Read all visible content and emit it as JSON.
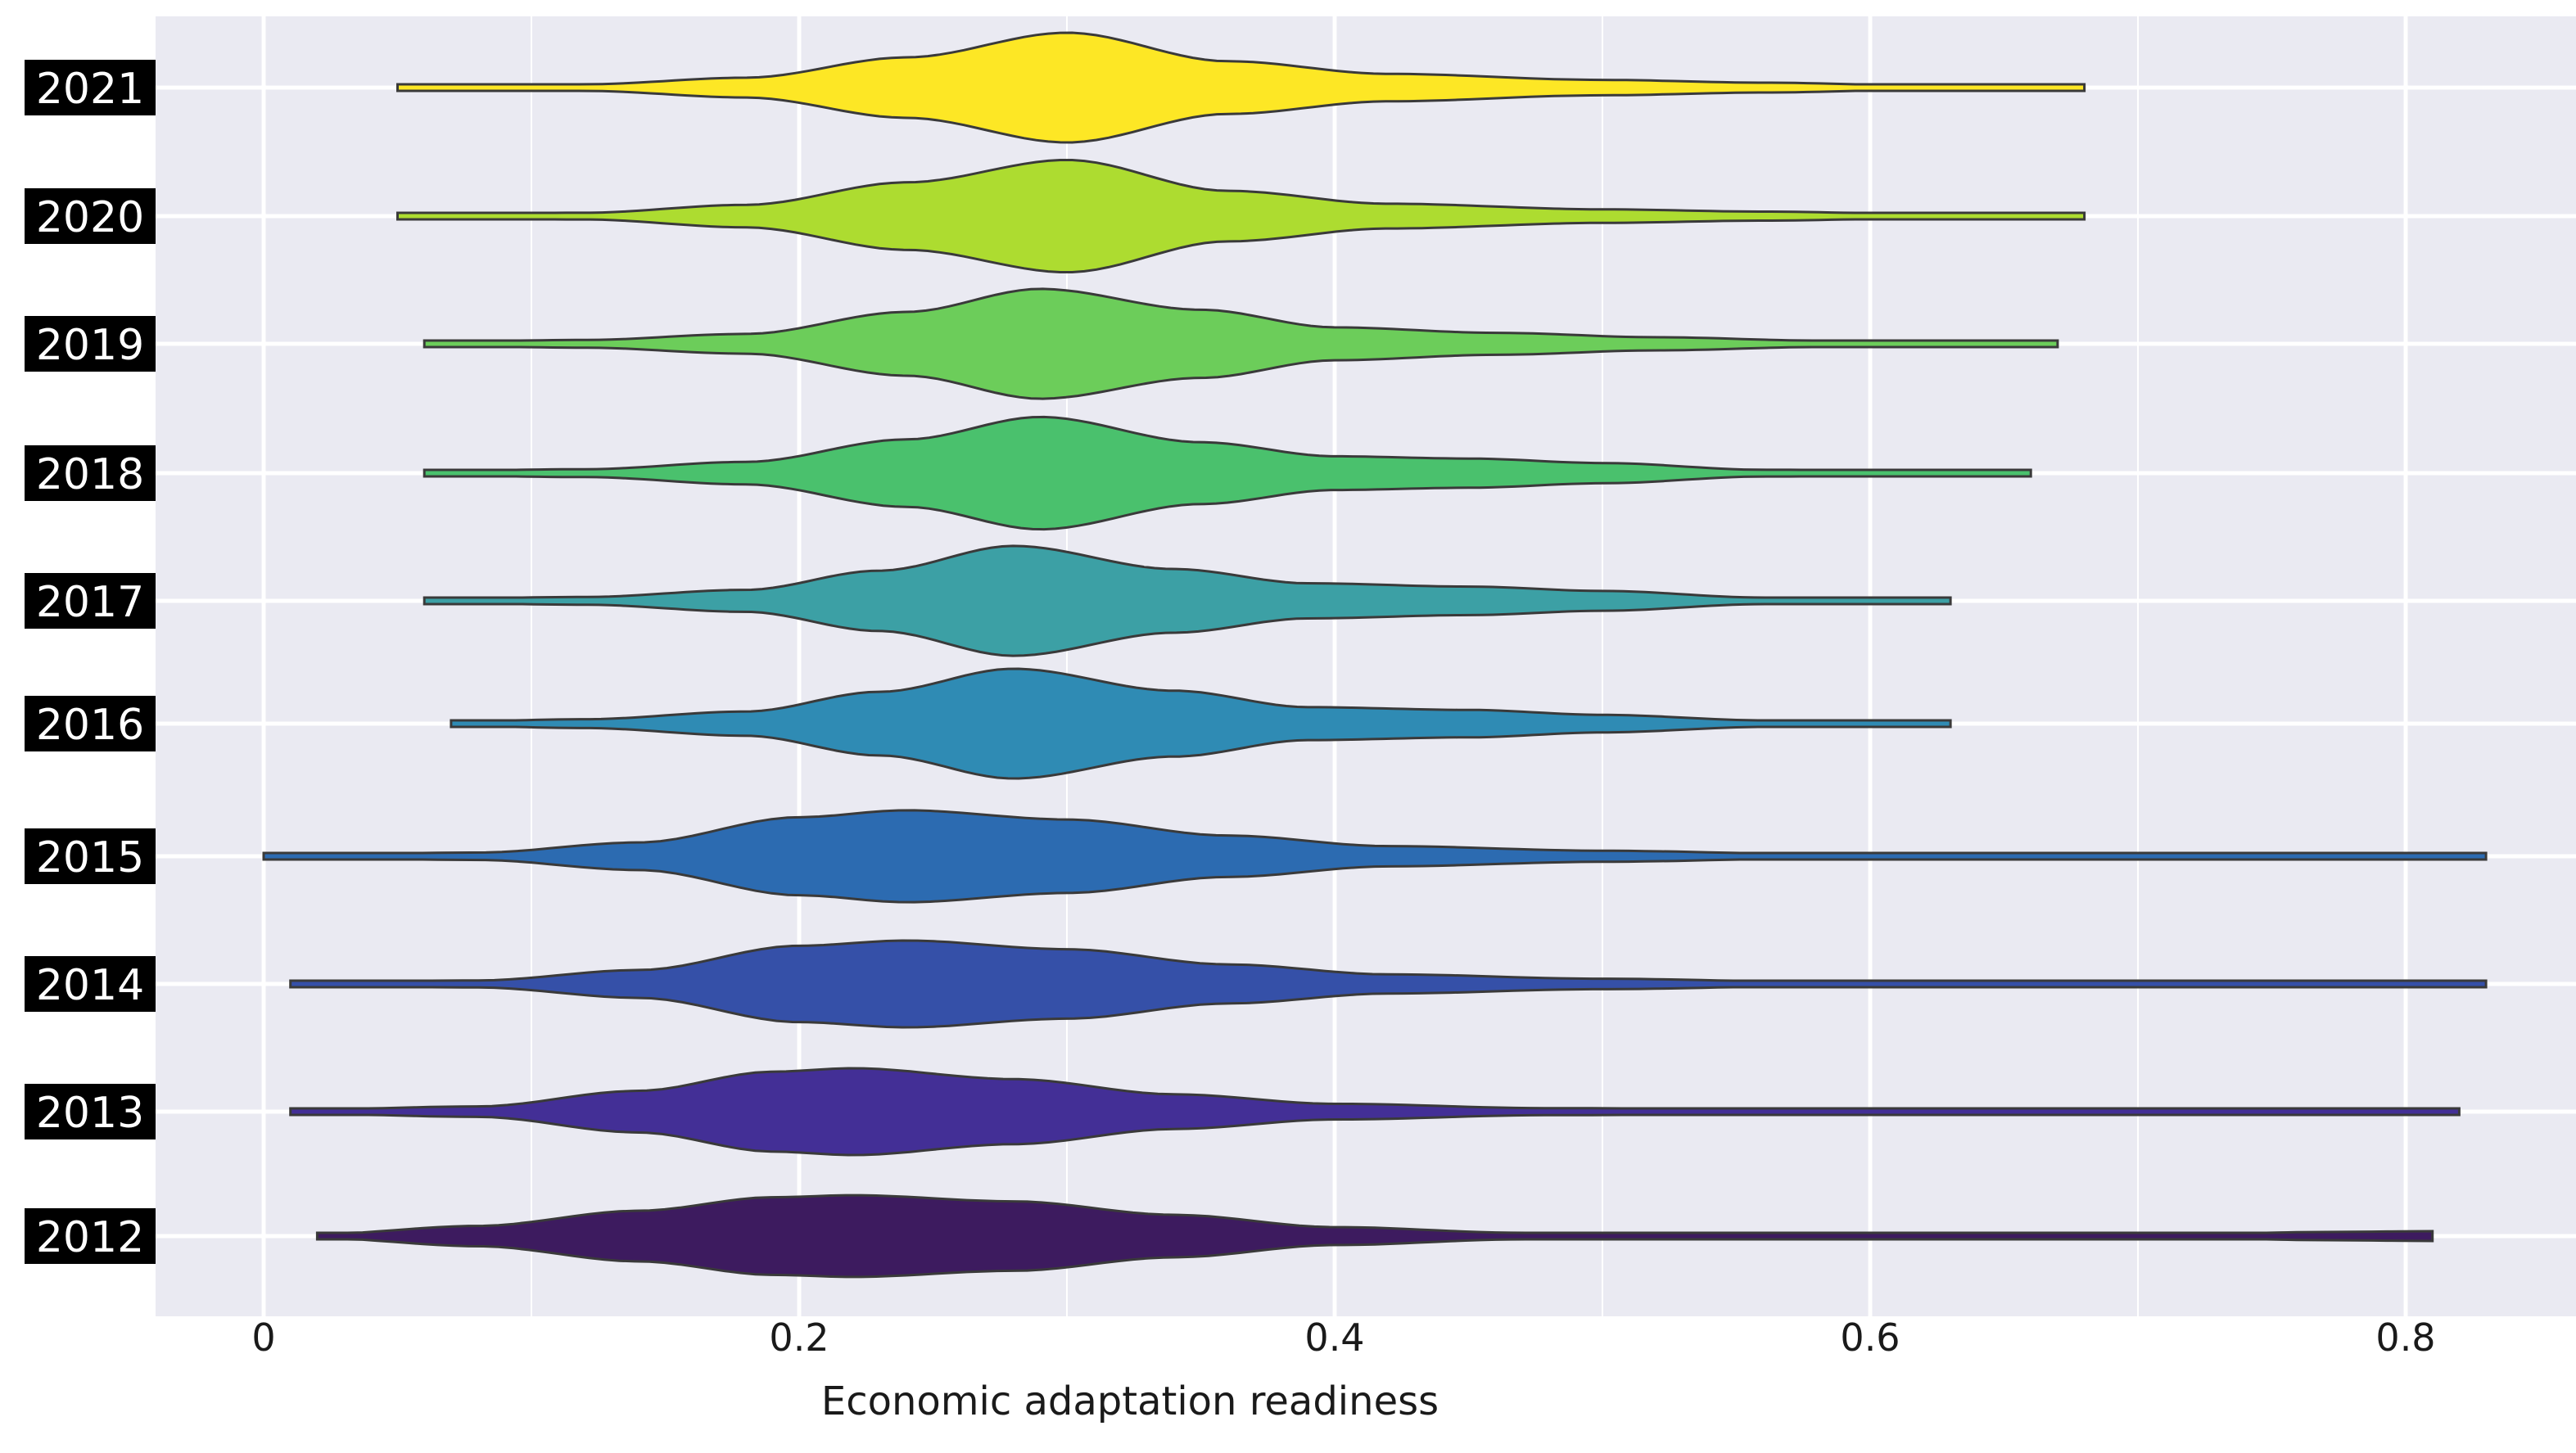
{
  "chart_data": {
    "type": "violin",
    "orientation": "horizontal",
    "title": "",
    "xlabel": "Economic adaptation readiness",
    "ylabel": "",
    "xlim": [
      -0.01,
      0.86
    ],
    "x_ticks": [
      {
        "value": 0,
        "label": "0"
      },
      {
        "value": 0.2,
        "label": "0.2"
      },
      {
        "value": 0.4,
        "label": "0.4"
      },
      {
        "value": 0.6,
        "label": "0.6"
      },
      {
        "value": 0.8,
        "label": "0.8"
      }
    ],
    "x_minor_ticks": [
      0.1,
      0.3,
      0.5,
      0.7
    ],
    "grid": true,
    "background_color": "#eaeaf2",
    "grid_color": "#ffffff",
    "outline_color": "#3a3a3a",
    "series": [
      {
        "label": "2021",
        "color": "#fde725",
        "min": 0.05,
        "max": 0.68,
        "half_width": 0.43,
        "profile": [
          [
            0.05,
            0.03
          ],
          [
            0.12,
            0.06
          ],
          [
            0.18,
            0.18
          ],
          [
            0.24,
            0.55
          ],
          [
            0.3,
            1.0
          ],
          [
            0.36,
            0.48
          ],
          [
            0.42,
            0.25
          ],
          [
            0.5,
            0.14
          ],
          [
            0.56,
            0.09
          ],
          [
            0.62,
            0.04
          ],
          [
            0.68,
            0.03
          ]
        ]
      },
      {
        "label": "2020",
        "color": "#addc30",
        "min": 0.05,
        "max": 0.68,
        "half_width": 0.44,
        "profile": [
          [
            0.05,
            0.03
          ],
          [
            0.12,
            0.06
          ],
          [
            0.18,
            0.2
          ],
          [
            0.24,
            0.6
          ],
          [
            0.3,
            1.0
          ],
          [
            0.36,
            0.45
          ],
          [
            0.42,
            0.22
          ],
          [
            0.5,
            0.12
          ],
          [
            0.56,
            0.08
          ],
          [
            0.62,
            0.04
          ],
          [
            0.68,
            0.03
          ]
        ]
      },
      {
        "label": "2019",
        "color": "#6ccd5a",
        "min": 0.06,
        "max": 0.67,
        "half_width": 0.43,
        "profile": [
          [
            0.06,
            0.04
          ],
          [
            0.12,
            0.07
          ],
          [
            0.18,
            0.18
          ],
          [
            0.24,
            0.58
          ],
          [
            0.29,
            1.0
          ],
          [
            0.35,
            0.62
          ],
          [
            0.4,
            0.3
          ],
          [
            0.46,
            0.2
          ],
          [
            0.52,
            0.12
          ],
          [
            0.58,
            0.06
          ],
          [
            0.67,
            0.04
          ]
        ]
      },
      {
        "label": "2018",
        "color": "#4ac16d",
        "min": 0.06,
        "max": 0.66,
        "half_width": 0.44,
        "profile": [
          [
            0.06,
            0.04
          ],
          [
            0.12,
            0.07
          ],
          [
            0.18,
            0.2
          ],
          [
            0.24,
            0.6
          ],
          [
            0.29,
            1.0
          ],
          [
            0.35,
            0.55
          ],
          [
            0.4,
            0.3
          ],
          [
            0.45,
            0.26
          ],
          [
            0.5,
            0.18
          ],
          [
            0.56,
            0.06
          ],
          [
            0.66,
            0.04
          ]
        ]
      },
      {
        "label": "2017",
        "color": "#3ca0a5",
        "min": 0.06,
        "max": 0.63,
        "half_width": 0.43,
        "profile": [
          [
            0.06,
            0.04
          ],
          [
            0.12,
            0.07
          ],
          [
            0.18,
            0.2
          ],
          [
            0.23,
            0.55
          ],
          [
            0.28,
            1.0
          ],
          [
            0.34,
            0.58
          ],
          [
            0.39,
            0.32
          ],
          [
            0.45,
            0.26
          ],
          [
            0.5,
            0.18
          ],
          [
            0.56,
            0.06
          ],
          [
            0.63,
            0.04
          ]
        ]
      },
      {
        "label": "2016",
        "color": "#2f8bb4",
        "min": 0.07,
        "max": 0.63,
        "half_width": 0.43,
        "profile": [
          [
            0.07,
            0.04
          ],
          [
            0.12,
            0.08
          ],
          [
            0.18,
            0.22
          ],
          [
            0.23,
            0.58
          ],
          [
            0.28,
            1.0
          ],
          [
            0.34,
            0.6
          ],
          [
            0.39,
            0.3
          ],
          [
            0.45,
            0.25
          ],
          [
            0.5,
            0.16
          ],
          [
            0.56,
            0.06
          ],
          [
            0.63,
            0.04
          ]
        ]
      },
      {
        "label": "2015",
        "color": "#2c6bb1",
        "min": 0.0,
        "max": 0.83,
        "half_width": 0.36,
        "profile": [
          [
            0.0,
            0.03
          ],
          [
            0.08,
            0.08
          ],
          [
            0.14,
            0.3
          ],
          [
            0.2,
            0.85
          ],
          [
            0.24,
            1.0
          ],
          [
            0.3,
            0.8
          ],
          [
            0.36,
            0.45
          ],
          [
            0.42,
            0.22
          ],
          [
            0.5,
            0.12
          ],
          [
            0.58,
            0.05
          ],
          [
            0.7,
            0.03
          ],
          [
            0.83,
            0.03
          ]
        ]
      },
      {
        "label": "2014",
        "color": "#3550a8",
        "min": 0.01,
        "max": 0.83,
        "half_width": 0.34,
        "profile": [
          [
            0.01,
            0.03
          ],
          [
            0.08,
            0.08
          ],
          [
            0.14,
            0.32
          ],
          [
            0.2,
            0.88
          ],
          [
            0.24,
            1.0
          ],
          [
            0.3,
            0.8
          ],
          [
            0.36,
            0.45
          ],
          [
            0.42,
            0.22
          ],
          [
            0.5,
            0.12
          ],
          [
            0.58,
            0.05
          ],
          [
            0.7,
            0.03
          ],
          [
            0.83,
            0.03
          ]
        ]
      },
      {
        "label": "2013",
        "color": "#432f96",
        "min": 0.01,
        "max": 0.82,
        "half_width": 0.34,
        "profile": [
          [
            0.01,
            0.04
          ],
          [
            0.08,
            0.12
          ],
          [
            0.14,
            0.48
          ],
          [
            0.19,
            0.92
          ],
          [
            0.22,
            1.0
          ],
          [
            0.28,
            0.75
          ],
          [
            0.34,
            0.4
          ],
          [
            0.4,
            0.18
          ],
          [
            0.48,
            0.08
          ],
          [
            0.6,
            0.05
          ],
          [
            0.72,
            0.04
          ],
          [
            0.82,
            0.04
          ]
        ]
      },
      {
        "label": "2012",
        "color": "#3d1b5f",
        "min": 0.02,
        "max": 0.81,
        "half_width": 0.32,
        "profile": [
          [
            0.02,
            0.05
          ],
          [
            0.08,
            0.25
          ],
          [
            0.14,
            0.62
          ],
          [
            0.19,
            0.95
          ],
          [
            0.22,
            1.0
          ],
          [
            0.28,
            0.85
          ],
          [
            0.34,
            0.52
          ],
          [
            0.4,
            0.22
          ],
          [
            0.47,
            0.08
          ],
          [
            0.56,
            0.05
          ],
          [
            0.66,
            0.04
          ],
          [
            0.72,
            0.05
          ],
          [
            0.77,
            0.1
          ],
          [
            0.81,
            0.12
          ]
        ]
      }
    ]
  }
}
